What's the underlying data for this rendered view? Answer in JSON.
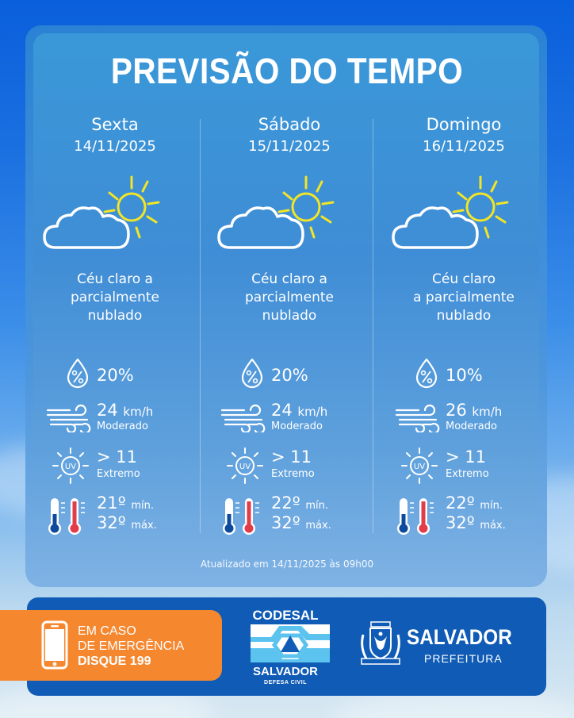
{
  "title": "PREVISÃO DO TEMPO",
  "colors": {
    "sun": "#f2e526",
    "thermo_cold": "#0d4a9c",
    "thermo_hot": "#e23b4a",
    "footer_bg": "#0f5bb5",
    "emergency_bg": "#f5872f"
  },
  "days": [
    {
      "name": "Sexta",
      "date": "14/11/2025",
      "icon": "partly-cloudy-icon",
      "condition_lines": [
        "Céu claro a",
        "parcialmente",
        "nublado"
      ],
      "rain_chance": "20%",
      "wind_speed": "24",
      "wind_unit": "km/h",
      "wind_label": "Moderado",
      "uv_value": "> 11",
      "uv_label": "Extremo",
      "temp_min": "21º",
      "temp_min_label": "mín.",
      "temp_max": "32º",
      "temp_max_label": "máx."
    },
    {
      "name": "Sábado",
      "date": "15/11/2025",
      "icon": "partly-cloudy-icon",
      "condition_lines": [
        "Céu claro a",
        "parcialmente",
        "nublado"
      ],
      "rain_chance": "20%",
      "wind_speed": "24",
      "wind_unit": "km/h",
      "wind_label": "Moderado",
      "uv_value": "> 11",
      "uv_label": "Extremo",
      "temp_min": "22º",
      "temp_min_label": "mín.",
      "temp_max": "32º",
      "temp_max_label": "máx."
    },
    {
      "name": "Domingo",
      "date": "16/11/2025",
      "icon": "partly-cloudy-icon",
      "condition_lines": [
        "Céu claro",
        "a parcialmente",
        "nublado"
      ],
      "rain_chance": "10%",
      "wind_speed": "26",
      "wind_unit": "km/h",
      "wind_label": "Moderado",
      "uv_value": "> 11",
      "uv_label": "Extremo",
      "temp_min": "22º",
      "temp_min_label": "mín.",
      "temp_max": "32º",
      "temp_max_label": "máx."
    }
  ],
  "updated": "Atualizado em 14/11/2025 às 09h00",
  "footer": {
    "emergency": {
      "line1": "EM CASO",
      "line2": "DE EMERGÊNCIA",
      "line3": "DISQUE 199",
      "icon": "phone-icon"
    },
    "codesal": {
      "title": "CODESAL",
      "sub1": "SALVADOR",
      "sub2": "DEFESA CIVIL"
    },
    "prefeitura": {
      "title": "SALVADOR",
      "sub": "PREFEITURA"
    }
  }
}
